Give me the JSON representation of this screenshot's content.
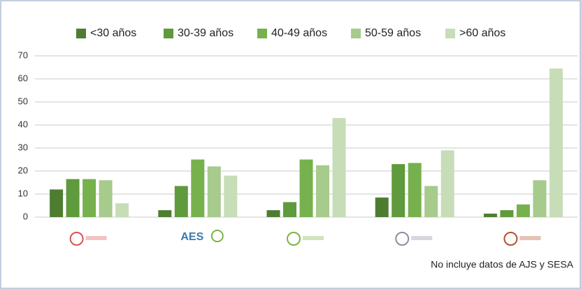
{
  "chart_data": {
    "type": "bar",
    "categories": [
      null,
      "AES",
      null,
      null,
      null
    ],
    "series": [
      {
        "name": "<30 años",
        "color": "#4e7d32",
        "values": [
          12,
          3,
          3,
          8.5,
          1.5
        ]
      },
      {
        "name": "30-39 años",
        "color": "#5f9a3c",
        "values": [
          16.5,
          13.5,
          6.5,
          23,
          3
        ]
      },
      {
        "name": "40-49 años",
        "color": "#76b14e",
        "values": [
          16.5,
          25,
          25,
          23.5,
          5.5
        ]
      },
      {
        "name": "50-59 años",
        "color": "#a6cb8c",
        "values": [
          16,
          22,
          22.5,
          13.5,
          16
        ]
      },
      {
        "name": ">60 años",
        "color": "#c7ddb8",
        "values": [
          6,
          18,
          43,
          29,
          64.5
        ]
      }
    ],
    "ylim": [
      0,
      70
    ],
    "yticks": [
      0,
      10,
      20,
      30,
      40,
      50,
      60,
      70
    ],
    "grid": true,
    "legend": "top",
    "annotations": [
      "No incluye datos de AJS y SESA"
    ]
  }
}
